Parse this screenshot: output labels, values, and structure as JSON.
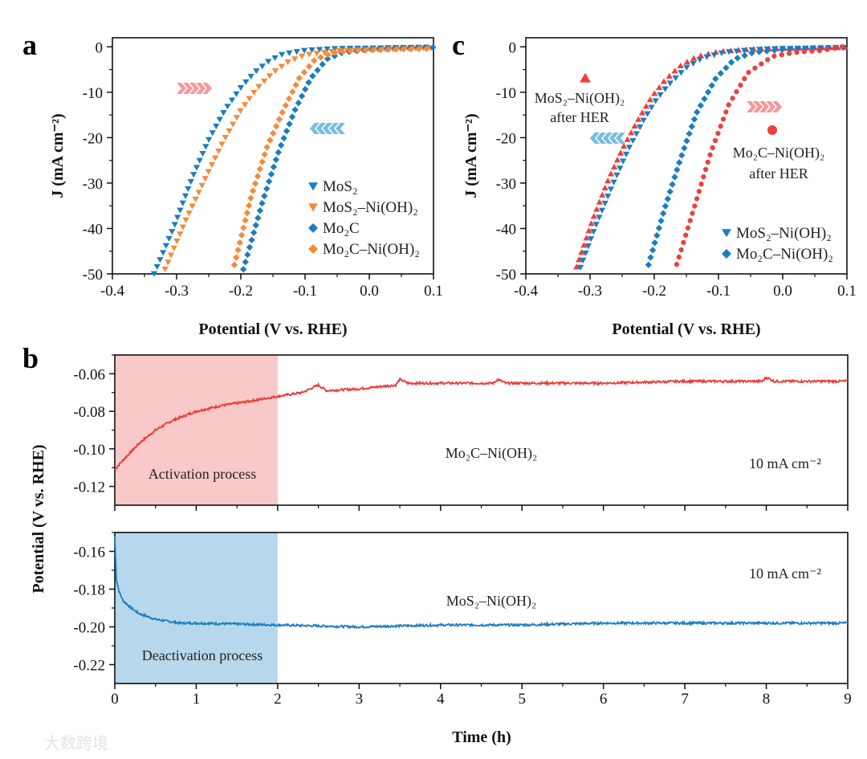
{
  "watermark": "大数跨境",
  "chart_data": [
    {
      "panel": "a",
      "type": "scatter",
      "xlabel": "Potential (V vs. RHE)",
      "ylabel": "J (mA cm⁻²)",
      "xlim": [
        -0.4,
        0.1
      ],
      "ylim": [
        -50,
        2
      ],
      "xticks": [
        "-0.4",
        "-0.3",
        "-0.2",
        "-0.1",
        "0.0",
        "0.1"
      ],
      "yticks": [
        "0",
        "-10",
        "-20",
        "-30",
        "-40",
        "-50"
      ],
      "legend_position": "bottom-right",
      "series": [
        {
          "name": "MoS₂",
          "color": "#1b7dc0",
          "marker": "triangle-down",
          "x": [
            -0.335,
            -0.305,
            -0.275,
            -0.25,
            -0.225,
            -0.2,
            -0.179,
            -0.155,
            -0.134,
            -0.1,
            -0.05,
            0.0,
            0.1
          ],
          "y": [
            -50,
            -40,
            -28.6,
            -20.5,
            -14,
            -9,
            -5.7,
            -3.0,
            -1.6,
            -0.8,
            -0.4,
            -0.3,
            -0.1
          ]
        },
        {
          "name": "MoS₂–Ni(OH)₂",
          "color": "#f58a3a",
          "marker": "triangle-down",
          "x": [
            -0.318,
            -0.285,
            -0.254,
            -0.226,
            -0.2,
            -0.175,
            -0.15,
            -0.125,
            -0.1,
            -0.05,
            0.0,
            0.1
          ],
          "y": [
            -49,
            -38,
            -28.6,
            -20.5,
            -14,
            -9.2,
            -5.7,
            -3.2,
            -1.8,
            -0.9,
            -0.6,
            -0.3
          ]
        },
        {
          "name": "Mo₂C",
          "color": "#1b7dc0",
          "marker": "diamond",
          "x": [
            -0.196,
            -0.166,
            -0.141,
            -0.116,
            -0.091,
            -0.066,
            -0.04,
            0.0,
            0.05,
            0.1
          ],
          "y": [
            -49,
            -34,
            -23,
            -14,
            -6.9,
            -2.7,
            -1.2,
            -0.6,
            -0.3,
            -0.1
          ]
        },
        {
          "name": "Mo₂C–Ni(OH)₂",
          "color": "#f58a3a",
          "marker": "diamond",
          "x": [
            -0.21,
            -0.184,
            -0.159,
            -0.134,
            -0.109,
            -0.084,
            -0.055,
            -0.02,
            0.05,
            0.1
          ],
          "y": [
            -48,
            -33,
            -22,
            -14,
            -6.9,
            -2.7,
            -1.3,
            -0.8,
            -0.5,
            -0.4
          ]
        }
      ]
    },
    {
      "panel": "c",
      "type": "scatter",
      "xlabel": "Potential (V vs. RHE)",
      "ylabel": "J (mA cm⁻²)",
      "xlim": [
        -0.4,
        0.1
      ],
      "ylim": [
        -50,
        2
      ],
      "xticks": [
        "-0.4",
        "-0.3",
        "-0.2",
        "-0.1",
        "0.0",
        "0.1"
      ],
      "yticks": [
        "0",
        "-10",
        "-20",
        "-30",
        "-40",
        "-50"
      ],
      "legend_position": "bottom-right",
      "annotations": [
        {
          "line1": "MoS₂–Ni(OH)₂",
          "line2": "after HER",
          "marker": "triangle-up",
          "color": "#ef3e3e"
        },
        {
          "line1": "Mo₂C–Ni(OH)₂",
          "line2": "after HER",
          "marker": "circle",
          "color": "#ef3e3e"
        }
      ],
      "series": [
        {
          "name": "MoS₂–Ni(OH)₂ after HER",
          "color": "#ef3e3e",
          "marker": "triangle-up",
          "in_legend": false,
          "x": [
            -0.321,
            -0.296,
            -0.271,
            -0.248,
            -0.225,
            -0.204,
            -0.184,
            -0.16,
            -0.134,
            -0.1,
            -0.05,
            0.0,
            0.1
          ],
          "y": [
            -48.4,
            -38,
            -29,
            -22,
            -16,
            -11,
            -7.4,
            -4.2,
            -2.1,
            -1.0,
            -0.5,
            -0.3,
            -0.1
          ]
        },
        {
          "name": "MoS₂–Ni(OH)₂",
          "color": "#1b7dc0",
          "marker": "triangle-down",
          "in_legend": true,
          "x": [
            -0.315,
            -0.29,
            -0.263,
            -0.24,
            -0.216,
            -0.196,
            -0.175,
            -0.15,
            -0.125,
            -0.09,
            -0.04,
            0.0,
            0.1
          ],
          "y": [
            -48.6,
            -39,
            -29.8,
            -22.5,
            -16,
            -11.5,
            -8,
            -4.6,
            -2.5,
            -1.2,
            -0.6,
            -0.4,
            -0.2
          ]
        },
        {
          "name": "Mo₂C–Ni(OH)₂",
          "color": "#1b7dc0",
          "marker": "diamond",
          "in_legend": true,
          "x": [
            -0.209,
            -0.184,
            -0.159,
            -0.134,
            -0.104,
            -0.075,
            -0.045,
            0.0,
            0.05,
            0.1
          ],
          "y": [
            -48,
            -35.7,
            -24.6,
            -14.5,
            -6.9,
            -2.7,
            -1.2,
            -0.6,
            -0.3,
            -0.1
          ]
        },
        {
          "name": "Mo₂C–Ni(OH)₂ after HER",
          "color": "#ef3e3e",
          "marker": "circle",
          "in_legend": false,
          "x": [
            -0.165,
            -0.137,
            -0.112,
            -0.084,
            -0.054,
            -0.016,
            0.02,
            0.06,
            0.1
          ],
          "y": [
            -47.9,
            -35,
            -23.3,
            -12.7,
            -5.7,
            -2.1,
            -1.2,
            -0.8,
            0.2
          ]
        }
      ]
    },
    {
      "panel": "b-top",
      "type": "line",
      "ylabel": "Potential (V vs. RHE)",
      "xlim": [
        0,
        9
      ],
      "ylim": [
        -0.13,
        -0.05
      ],
      "yticks": [
        "-0.06",
        "-0.08",
        "-0.10",
        "-0.12"
      ],
      "shaded_region": {
        "x": [
          0,
          2
        ],
        "label": "Activation process",
        "color": "#f9c8c8"
      },
      "sample_label": "Mo₂C–Ni(OH)₂",
      "current_label": "10 mA cm⁻²",
      "series": [
        {
          "name": "Mo₂C–Ni(OH)₂",
          "color": "#ea3b3b",
          "x": [
            0,
            0.1,
            0.3,
            0.5,
            0.7,
            1.0,
            1.3,
            1.6,
            2.0,
            2.3,
            2.45,
            2.5,
            2.6,
            3.0,
            3.45,
            3.5,
            3.6,
            4.0,
            4.65,
            4.7,
            4.8,
            5,
            6,
            7,
            7.95,
            8,
            8.1,
            9
          ],
          "y": [
            -0.111,
            -0.106,
            -0.097,
            -0.09,
            -0.085,
            -0.08,
            -0.077,
            -0.075,
            -0.072,
            -0.07,
            -0.067,
            -0.066,
            -0.069,
            -0.068,
            -0.066,
            -0.063,
            -0.065,
            -0.065,
            -0.065,
            -0.063,
            -0.065,
            -0.065,
            -0.065,
            -0.064,
            -0.064,
            -0.062,
            -0.064,
            -0.064
          ]
        }
      ]
    },
    {
      "panel": "b-bottom",
      "type": "line",
      "xlabel": "Time (h)",
      "ylabel": "Potential (V vs. RHE)",
      "xlim": [
        0,
        9
      ],
      "ylim": [
        -0.23,
        -0.15
      ],
      "xticks": [
        "0",
        "1",
        "2",
        "3",
        "4",
        "5",
        "6",
        "7",
        "8",
        "9"
      ],
      "yticks": [
        "-0.16",
        "-0.18",
        "-0.20",
        "-0.22"
      ],
      "shaded_region": {
        "x": [
          0,
          2
        ],
        "label": "Deactivation process",
        "color": "#b7d8ec"
      },
      "sample_label": "MoS₂–Ni(OH)₂",
      "current_label": "10 mA cm⁻²",
      "series": [
        {
          "name": "MoS₂–Ni(OH)₂",
          "color": "#1b7dc0",
          "x": [
            0,
            0.02,
            0.05,
            0.1,
            0.2,
            0.3,
            0.5,
            0.8,
            1,
            2,
            3,
            4,
            5,
            6,
            7,
            8,
            9
          ],
          "y": [
            -0.152,
            -0.175,
            -0.181,
            -0.186,
            -0.19,
            -0.193,
            -0.196,
            -0.198,
            -0.198,
            -0.199,
            -0.2,
            -0.199,
            -0.199,
            -0.198,
            -0.198,
            -0.198,
            -0.198
          ]
        }
      ]
    }
  ],
  "panel_labels": [
    "a",
    "b",
    "c"
  ]
}
